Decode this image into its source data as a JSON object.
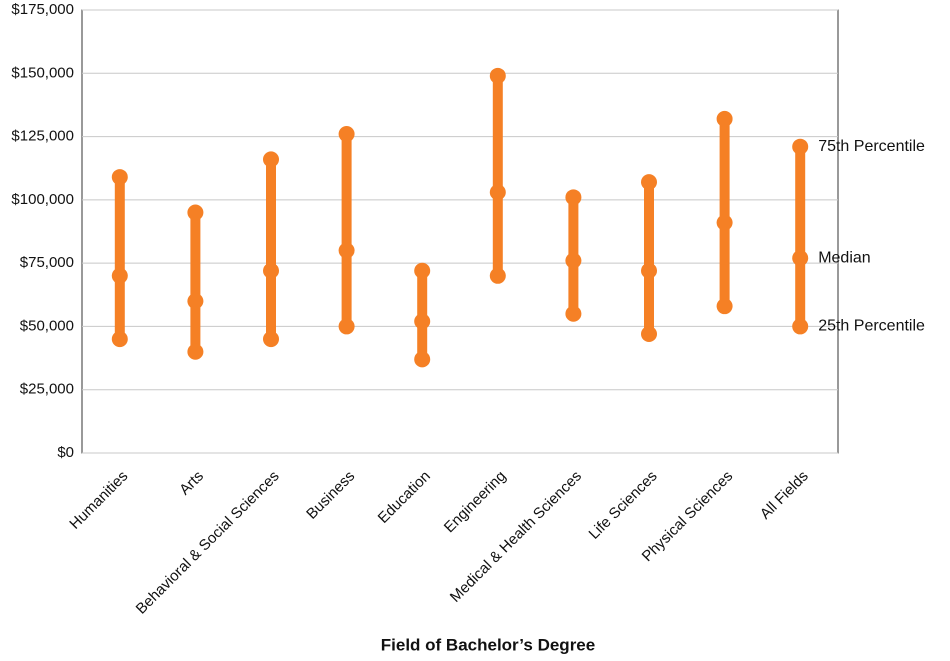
{
  "chart_data": {
    "type": "dumbbell",
    "x_label": "Field of Bachelor’s Degree",
    "categories": [
      "Humanities",
      "Arts",
      "Behavioral & Social Sciences",
      "Business",
      "Education",
      "Engineering",
      "Medical & Health Sciences",
      "Life Sciences",
      "Physical Sciences",
      "All Fields"
    ],
    "series": [
      {
        "name": "75th Percentile",
        "color": "#f58025",
        "values": [
          109000,
          95000,
          116000,
          126000,
          72000,
          149000,
          101000,
          107000,
          132000,
          121000
        ]
      },
      {
        "name": "Median",
        "color": "#f58025",
        "values": [
          70000,
          60000,
          72000,
          80000,
          52000,
          103000,
          76000,
          72000,
          91000,
          77000
        ]
      },
      {
        "name": "25th Percentile",
        "color": "#f58025",
        "values": [
          45000,
          40000,
          45000,
          50000,
          37000,
          70000,
          55000,
          47000,
          58000,
          50000
        ]
      }
    ],
    "ylim": [
      0,
      175000
    ],
    "yticks": [
      {
        "value": 0,
        "label": "$0"
      },
      {
        "value": 25000,
        "label": "$25,000"
      },
      {
        "value": 50000,
        "label": "$50,000"
      },
      {
        "value": 75000,
        "label": "$75,000"
      },
      {
        "value": 100000,
        "label": "$100,000"
      },
      {
        "value": 125000,
        "label": "$125,000"
      },
      {
        "value": 150000,
        "label": "$150,000"
      },
      {
        "value": 175000,
        "label": "$175,000"
      }
    ],
    "grid": true
  }
}
